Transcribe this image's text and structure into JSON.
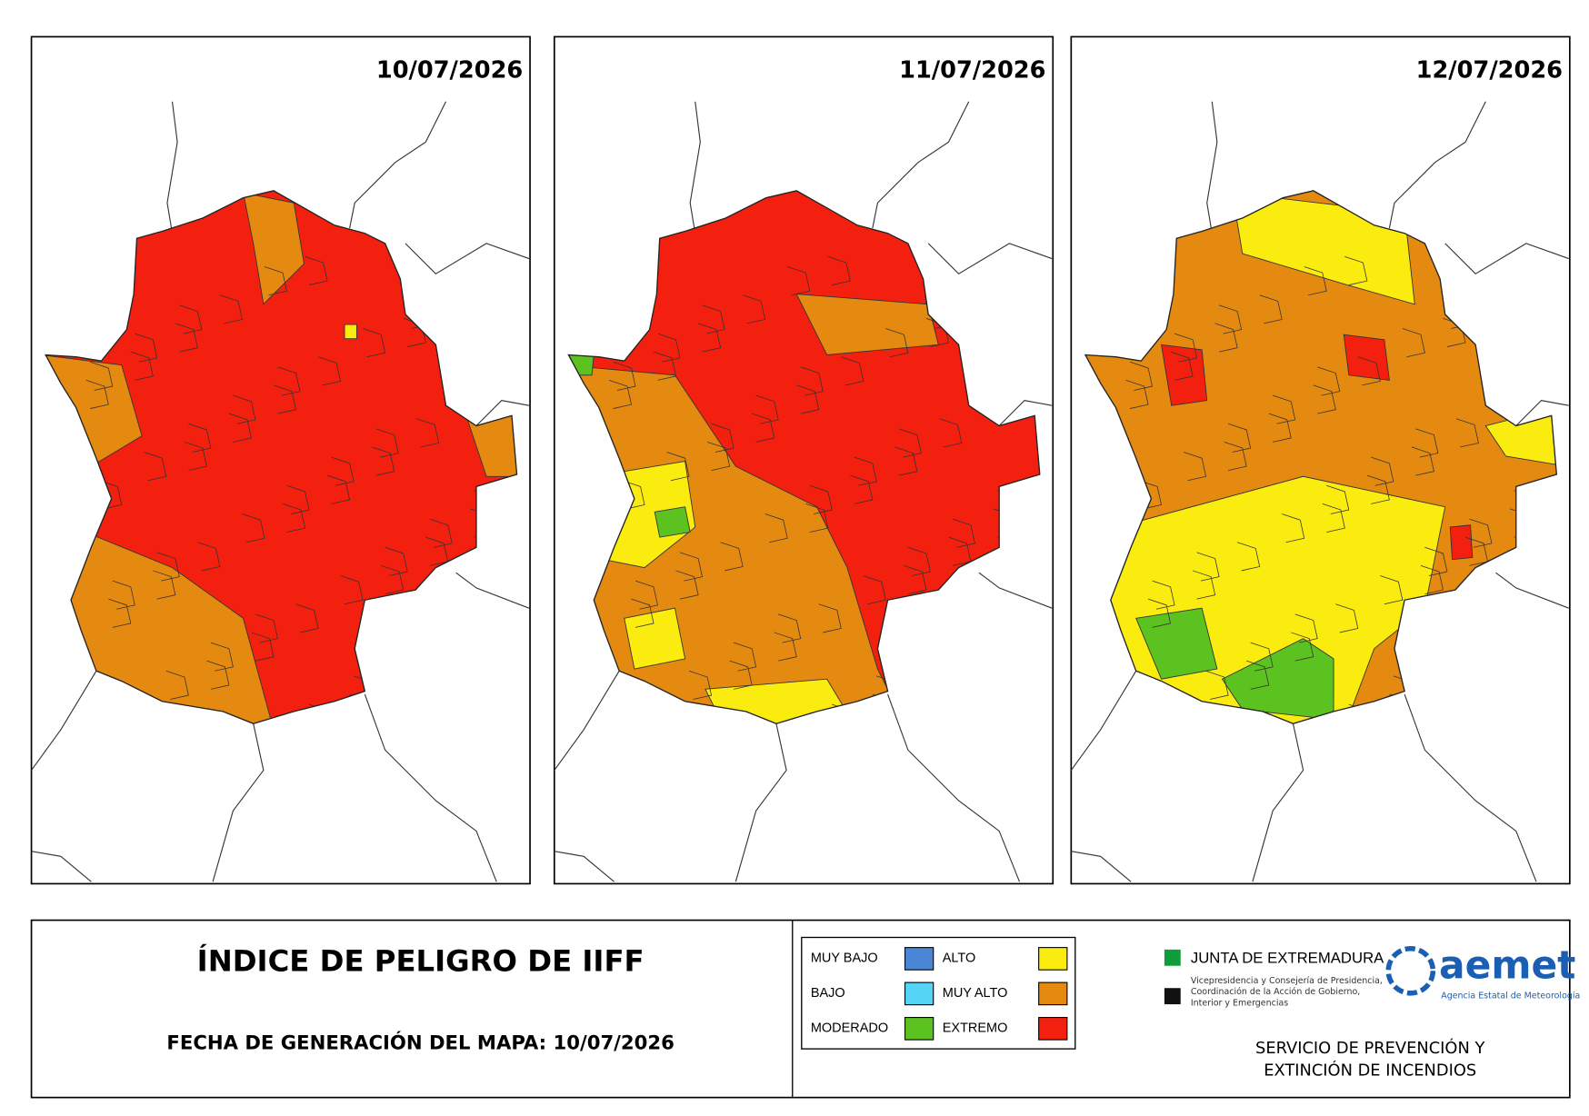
{
  "maps": [
    {
      "date": "10/07/2026"
    },
    {
      "date": "11/07/2026"
    },
    {
      "date": "12/07/2026"
    }
  ],
  "footer": {
    "title": "ÍNDICE DE PELIGRO DE IIFF",
    "generation_date": "FECHA DE GENERACIÓN DEL MAPA: 10/07/2026"
  },
  "legend": [
    {
      "label": "MUY BAJO",
      "color": "#4a86d6"
    },
    {
      "label": "BAJO",
      "color": "#55d4f5"
    },
    {
      "label": "MODERADO",
      "color": "#5cc21f"
    },
    {
      "label": "ALTO",
      "color": "#fbec10"
    },
    {
      "label": "MUY ALTO",
      "color": "#e58a10"
    },
    {
      "label": "EXTREMO",
      "color": "#f3200f"
    }
  ],
  "logos": {
    "junta": "JUNTA DE EXTREMADURA",
    "junta_sub": [
      "Vicepresidencia y Consejería de Presidencia,",
      "Coordinación de la Acción de Gobierno,",
      "Interior y Emergencias"
    ],
    "aemet": "aemet",
    "aemet_sub": "Agencia Estatal de Meteorología"
  },
  "service": [
    "SERVICIO DE PREVENCIÓN Y",
    "EXTINCIÓN DE INCENDIOS"
  ]
}
